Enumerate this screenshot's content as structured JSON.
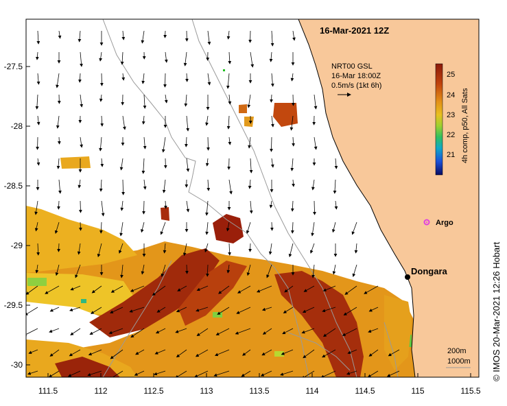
{
  "title": "16-Mar-2021 12Z",
  "credit": "© IMOS 20-Mar-2021 12:26 Hobart",
  "axes": {
    "x_ticks": [
      "111.5",
      "112",
      "112.5",
      "113",
      "113.5",
      "114",
      "114.5",
      "115",
      "115.5"
    ],
    "y_ticks": [
      "-27.5",
      "-28",
      "-28.5",
      "-29",
      "-29.5",
      "-30"
    ]
  },
  "current_legend": {
    "line1": "NRT00 GSL",
    "line2": "16-Mar 18:00Z",
    "line3": "0.5m/s (1kt 6h)"
  },
  "colorbar": {
    "ticks": [
      "25",
      "24",
      "23",
      "22",
      "21"
    ],
    "label": "4h comp, p50, All Sats",
    "colors": [
      "#8b1a0a",
      "#b83a0a",
      "#d8730f",
      "#eab21d",
      "#c8d82a",
      "#5ec838",
      "#1fa8a8",
      "#1a4fd0",
      "#0a1070"
    ]
  },
  "places": {
    "dongara": "Dongara",
    "argo": "Argo"
  },
  "isobaths": {
    "label_200": "200m",
    "label_1000": "1000m"
  },
  "colors": {
    "land": "#f8c89a",
    "argo_marker": "#e040e0"
  }
}
